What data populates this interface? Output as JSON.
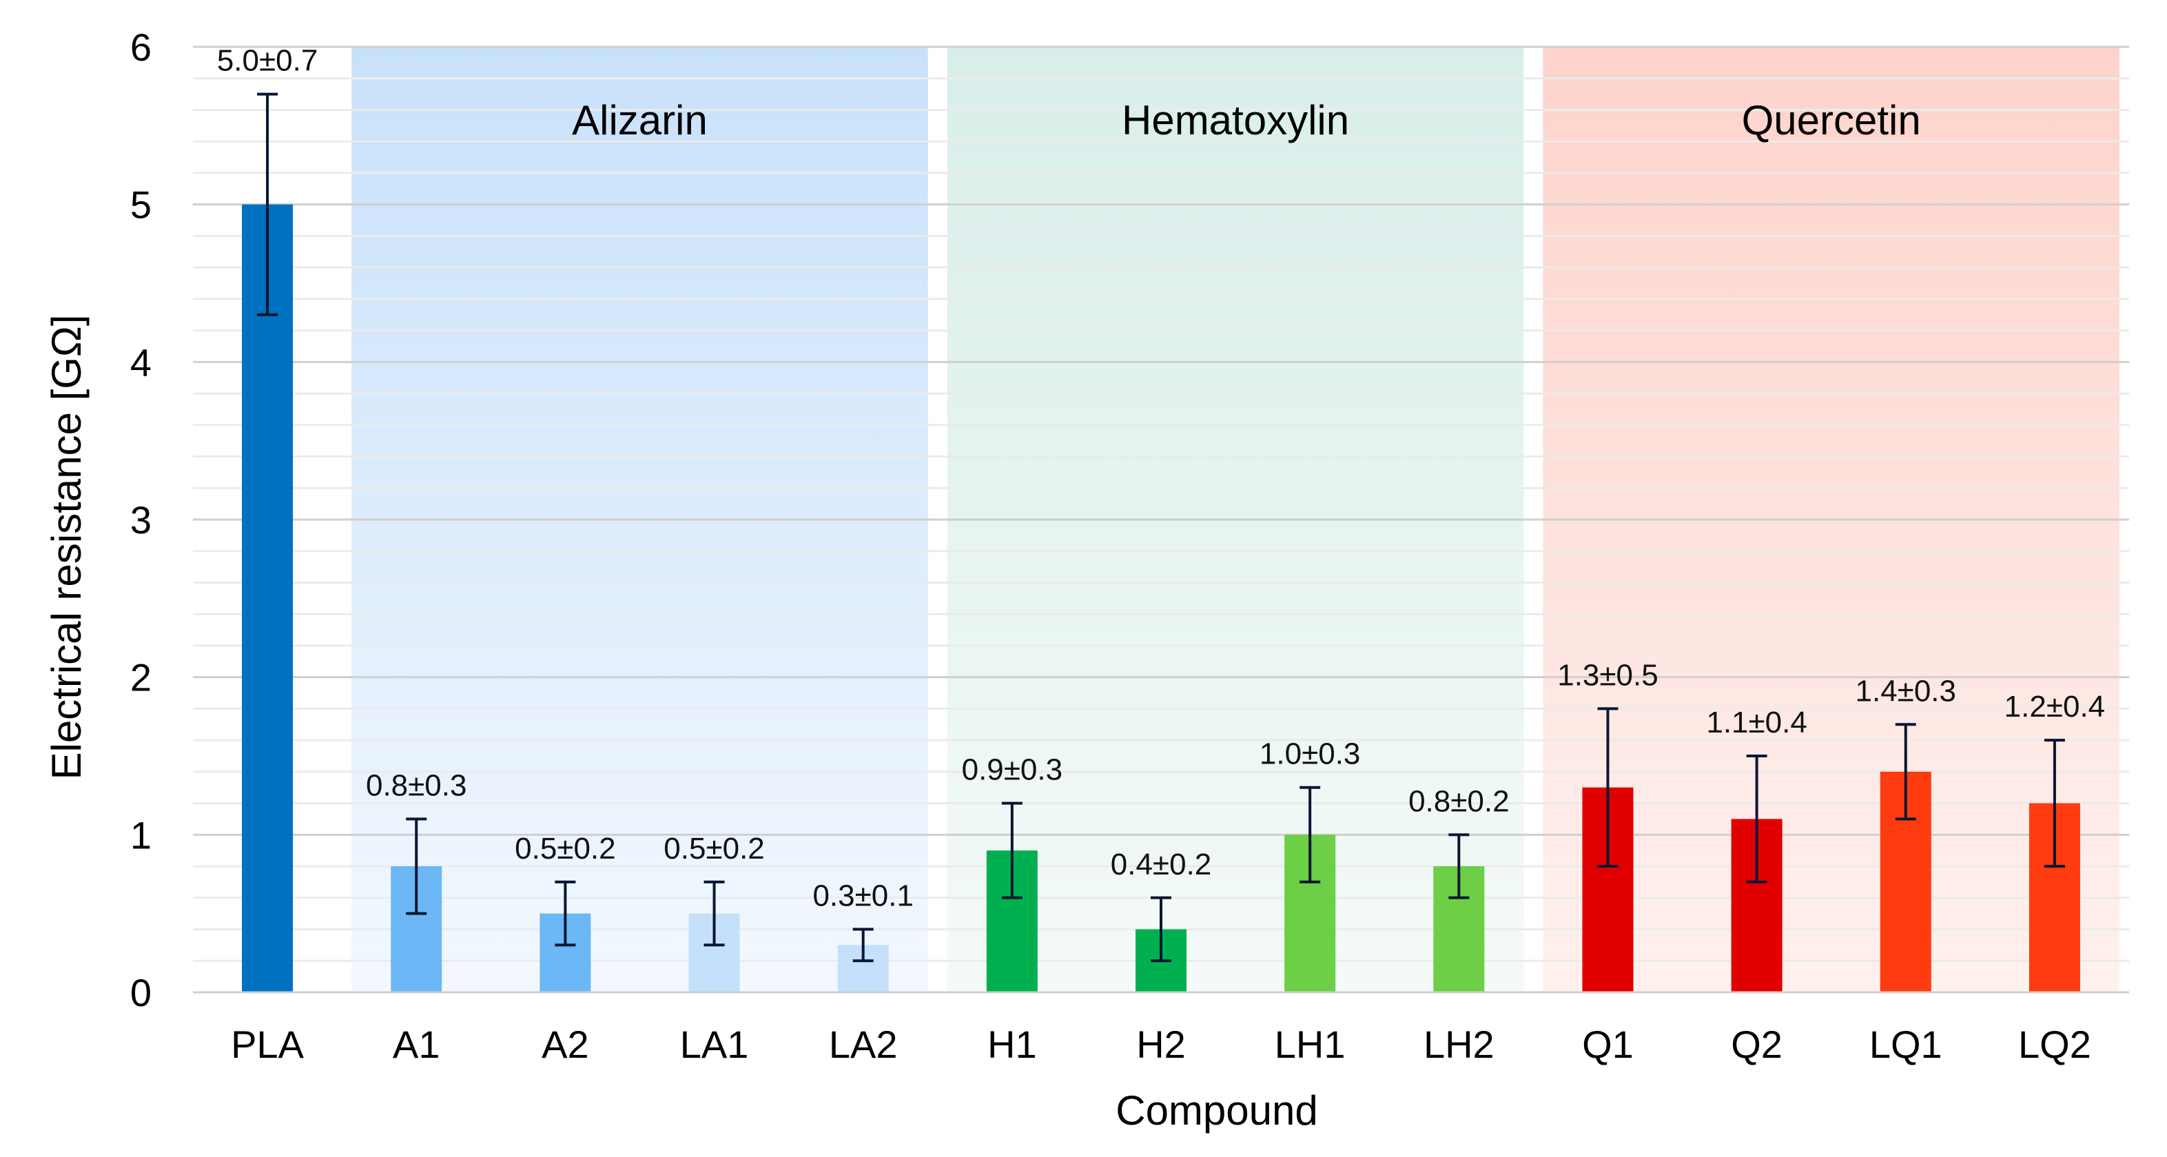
{
  "chart_data": {
    "type": "bar",
    "title": "",
    "xlabel": "Compound",
    "ylabel": "Electrical resistance [GΩ]",
    "ylim": [
      0,
      6
    ],
    "yticks": [
      0,
      1,
      2,
      3,
      4,
      5,
      6
    ],
    "grid": true,
    "categories": [
      "PLA",
      "A1",
      "A2",
      "LA1",
      "LA2",
      "H1",
      "H2",
      "LH1",
      "LH2",
      "Q1",
      "Q2",
      "LQ1",
      "LQ2"
    ],
    "values": [
      5.0,
      0.8,
      0.5,
      0.5,
      0.3,
      0.9,
      0.4,
      1.0,
      0.8,
      1.3,
      1.1,
      1.4,
      1.2
    ],
    "errors": [
      0.7,
      0.3,
      0.2,
      0.2,
      0.1,
      0.3,
      0.2,
      0.3,
      0.2,
      0.5,
      0.4,
      0.3,
      0.4
    ],
    "data_labels": [
      "5.0±0.7",
      "0.8±0.3",
      "0.5±0.2",
      "0.5±0.2",
      "0.3±0.1",
      "0.9±0.3",
      "0.4±0.2",
      "1.0±0.3",
      "0.8±0.2",
      "1.3±0.5",
      "1.1±0.4",
      "1.4±0.3",
      "1.2±0.4"
    ],
    "bar_colors": [
      "#0070C0",
      "#6CB7F5",
      "#6CB7F5",
      "#C5E0FA",
      "#C5E0FA",
      "#00B050",
      "#00B050",
      "#6CCF45",
      "#6CCF45",
      "#E00000",
      "#E00000",
      "#FF3B0F",
      "#FF3B0F"
    ],
    "groups": [
      {
        "label": "Alizarin",
        "start": 1,
        "end": 4,
        "color_top": "#C8E1FA",
        "color_bottom": "#F3F8FE"
      },
      {
        "label": "Hematoxylin",
        "start": 5,
        "end": 8,
        "color_top": "#D9EEEA",
        "color_bottom": "#F4FAF8"
      },
      {
        "label": "Quercetin",
        "start": 9,
        "end": 12,
        "color_top": "#FDD3CB",
        "color_bottom": "#FFF1EE"
      }
    ]
  }
}
